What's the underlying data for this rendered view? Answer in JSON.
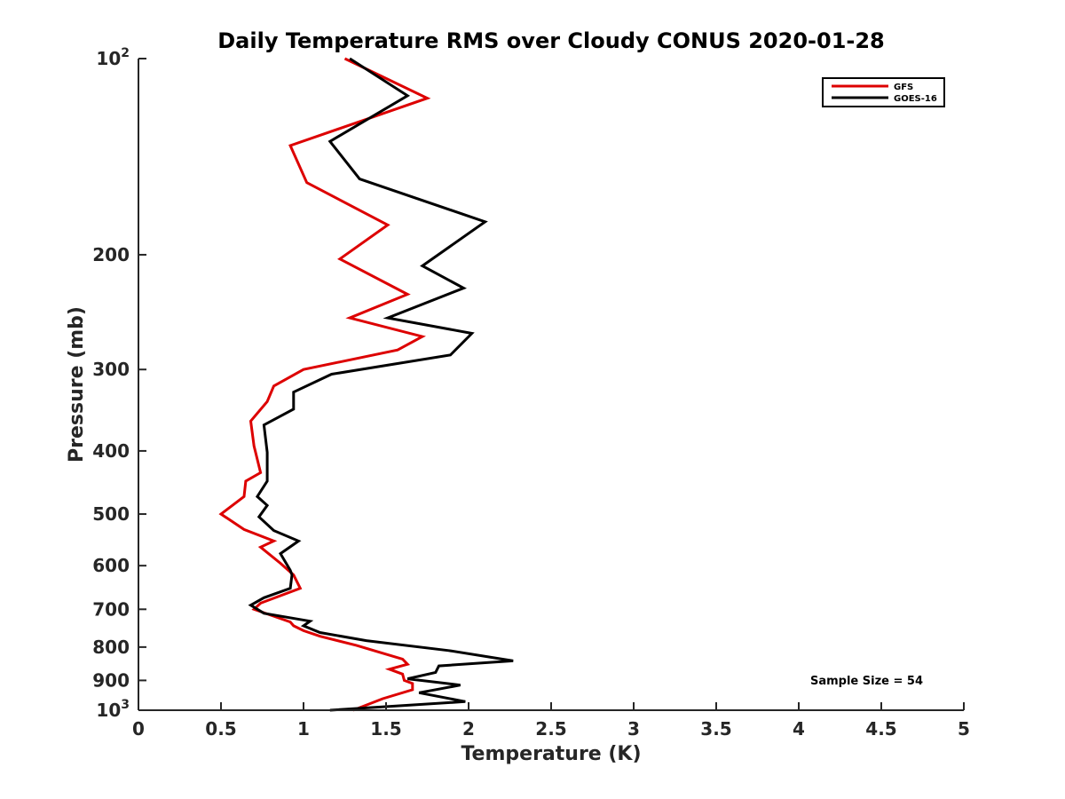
{
  "chart_data": {
    "type": "line",
    "title": "Daily Temperature RMS over Cloudy CONUS 2020-01-28",
    "xlabel": "Temperature (K)",
    "ylabel": "Pressure (mb)",
    "xlim": [
      0,
      5
    ],
    "ylim": [
      100,
      1000
    ],
    "yscale": "log",
    "yreversed": true,
    "x_ticks": [
      "0",
      "0.5",
      "1",
      "1.5",
      "2",
      "2.5",
      "3",
      "3.5",
      "4",
      "4.5",
      "5"
    ],
    "x_tick_values": [
      0,
      0.5,
      1,
      1.5,
      2,
      2.5,
      3,
      3.5,
      4,
      4.5,
      5
    ],
    "y_ticks": [
      {
        "value": 100,
        "base": "10",
        "exp": "2"
      },
      {
        "value": 200,
        "label": "200"
      },
      {
        "value": 300,
        "label": "300"
      },
      {
        "value": 400,
        "label": "400"
      },
      {
        "value": 500,
        "label": "500"
      },
      {
        "value": 600,
        "label": "600"
      },
      {
        "value": 700,
        "label": "700"
      },
      {
        "value": 800,
        "label": "800"
      },
      {
        "value": 900,
        "label": "900"
      },
      {
        "value": 1000,
        "base": "10",
        "exp": "3"
      }
    ],
    "legend_position": "top-right",
    "annotation": "Sample Size = 54",
    "series": [
      {
        "name": "GFS",
        "color": "#dd0000",
        "x": [
          1.25,
          1.75,
          0.92,
          1.02,
          1.51,
          1.22,
          1.63,
          1.28,
          1.72,
          1.57,
          1.0,
          0.82,
          0.78,
          0.68,
          0.7,
          0.74,
          0.65,
          0.64,
          0.5,
          0.64,
          0.82,
          0.74,
          0.86,
          0.94,
          0.98,
          0.74,
          0.7,
          0.92,
          0.94,
          1.0,
          1.1,
          1.32,
          1.6,
          1.63,
          1.52,
          1.6,
          1.61,
          1.66,
          1.66,
          1.48,
          1.3
        ],
        "y": [
          100,
          115,
          136,
          155,
          180,
          203,
          230,
          250,
          267,
          280,
          300,
          318,
          336,
          360,
          393,
          432,
          445,
          470,
          500,
          528,
          550,
          562,
          595,
          620,
          650,
          685,
          700,
          732,
          742,
          755,
          770,
          795,
          835,
          850,
          865,
          880,
          900,
          910,
          930,
          960,
          1000
        ]
      },
      {
        "name": "GOES-16",
        "color": "#000000",
        "x": [
          1.28,
          1.63,
          1.16,
          1.34,
          2.1,
          1.72,
          1.97,
          1.51,
          2.02,
          1.89,
          1.17,
          0.94,
          0.94,
          0.76,
          0.78,
          0.78,
          0.72,
          0.78,
          0.73,
          0.82,
          0.97,
          0.86,
          0.92,
          0.93,
          0.92,
          0.76,
          0.68,
          0.76,
          1.04,
          1.0,
          1.1,
          1.38,
          1.88,
          2.27,
          1.82,
          1.8,
          1.63,
          1.95,
          1.7,
          1.98,
          1.16
        ],
        "y": [
          100,
          114,
          134,
          153,
          178,
          208,
          225,
          250,
          264,
          285,
          305,
          325,
          345,
          365,
          402,
          445,
          470,
          485,
          505,
          530,
          550,
          575,
          610,
          620,
          650,
          672,
          690,
          710,
          730,
          742,
          760,
          782,
          810,
          840,
          855,
          875,
          895,
          915,
          940,
          970,
          1000
        ]
      }
    ]
  }
}
